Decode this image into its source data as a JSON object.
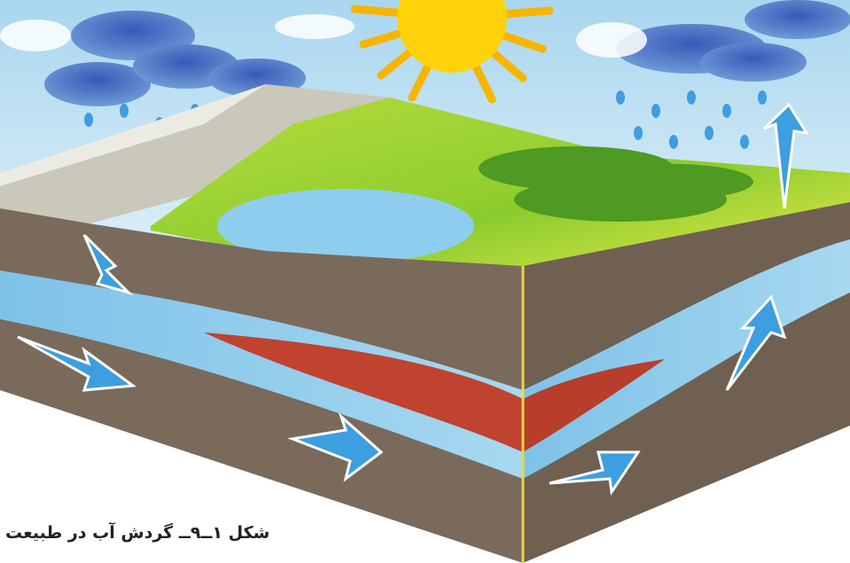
{
  "caption": "شکل ۱ــ۹ــ گردش آب در طبیعت"
}
